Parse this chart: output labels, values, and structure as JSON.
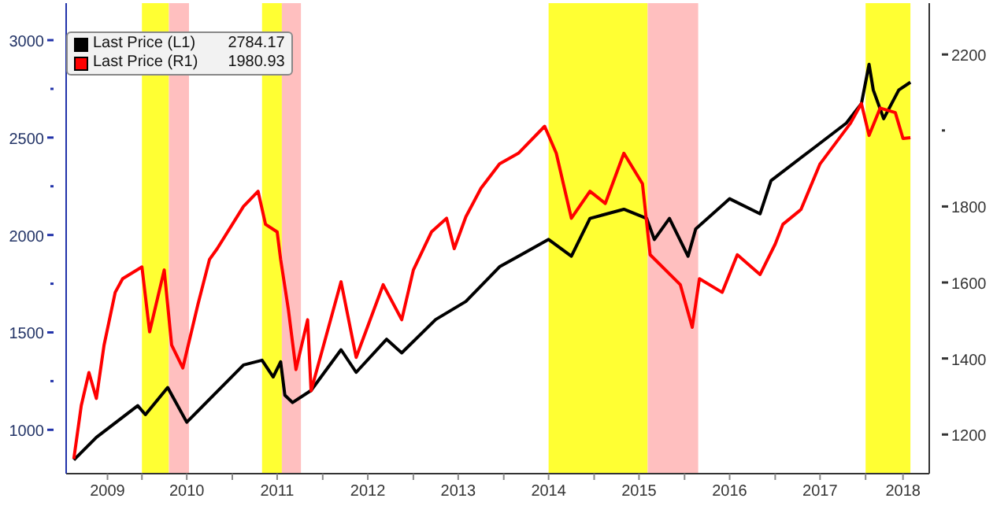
{
  "chart_data": {
    "type": "line",
    "xlim": [
      "2009-03-01",
      "2018-09-15"
    ],
    "xticks": [
      {
        "value": "2010-01-01",
        "label": null
      },
      {
        "value": "2011-01-01",
        "label": null
      },
      {
        "value": "2012-01-01",
        "label": null
      },
      {
        "value": "2013-01-01",
        "label": null
      },
      {
        "value": "2014-01-01",
        "label": null
      },
      {
        "value": "2015-01-01",
        "label": null
      },
      {
        "value": "2016-01-01",
        "label": null
      },
      {
        "value": "2017-01-01",
        "label": null
      },
      {
        "value": "2018-01-01",
        "label": null
      },
      {
        "value": "2009-08-15",
        "label": "2009"
      },
      {
        "value": "2010-07-01",
        "label": "2010"
      },
      {
        "value": "2011-07-01",
        "label": "2011"
      },
      {
        "value": "2012-07-01",
        "label": "2012"
      },
      {
        "value": "2013-07-01",
        "label": "2013"
      },
      {
        "value": "2014-07-01",
        "label": "2014"
      },
      {
        "value": "2015-07-01",
        "label": "2015"
      },
      {
        "value": "2016-07-01",
        "label": "2016"
      },
      {
        "value": "2017-07-01",
        "label": "2017"
      },
      {
        "value": "2018-06-01",
        "label": "2018"
      }
    ],
    "ylim": [
      775,
      3190
    ],
    "yticks": [
      1000,
      {
        "value": 1250,
        "label": null
      },
      1500,
      {
        "value": 1750,
        "label": null
      },
      2000,
      {
        "value": 2250,
        "label": null
      },
      2500,
      {
        "value": 2750,
        "label": null
      },
      3000
    ],
    "y2lim": [
      1097,
      2335
    ],
    "y2ticks": [
      1200,
      1400,
      1600,
      1800,
      {
        "value": 2000,
        "label": null
      },
      2200
    ],
    "legend": "top left",
    "marker": "none",
    "line_style": "solid",
    "annotations": [
      "2784.17",
      "1980.93"
    ],
    "bands": [
      {
        "axis": "x",
        "from": "2010-01-01",
        "to": "2010-04-20",
        "color": "#ffff33"
      },
      {
        "axis": "x",
        "from": "2010-04-20",
        "to": "2010-07-10",
        "color": "#ffbfbf"
      },
      {
        "axis": "x",
        "from": "2011-05-01",
        "to": "2011-07-20",
        "color": "#ffff33"
      },
      {
        "axis": "x",
        "from": "2011-07-20",
        "to": "2011-10-05",
        "color": "#ffbfbf"
      },
      {
        "axis": "x",
        "from": "2014-07-01",
        "to": "2015-08-05",
        "color": "#ffff33"
      },
      {
        "axis": "x",
        "from": "2015-08-05",
        "to": "2016-02-25",
        "color": "#ffbfbf"
      },
      {
        "axis": "x",
        "from": "2018-01-01",
        "to": "2018-07-01",
        "color": "#ffff33"
      }
    ],
    "series": [
      {
        "name": "Last Price (L1)",
        "color": "#000000",
        "x": [
          "2009-04-01",
          "2009-07-01",
          "2009-12-15",
          "2010-01-15",
          "2010-04-15",
          "2010-07-01",
          "2011-02-15",
          "2011-05-01",
          "2011-06-15",
          "2011-07-15",
          "2011-08-01",
          "2011-09-01",
          "2011-11-15",
          "2012-03-15",
          "2012-05-15",
          "2012-09-15",
          "2012-11-15",
          "2013-04-01",
          "2013-08-01",
          "2013-12-15",
          "2014-03-01",
          "2014-07-01",
          "2014-10-01",
          "2014-12-15",
          "2015-05-01",
          "2015-08-01",
          "2015-09-01",
          "2015-11-01",
          "2016-01-15",
          "2016-02-15",
          "2016-07-01",
          "2016-11-01",
          "2016-12-15",
          "2017-06-01",
          "2017-10-15",
          "2017-12-15",
          "2018-01-15",
          "2018-02-01",
          "2018-03-15",
          "2018-05-15",
          "2018-07-01"
        ],
        "values": [
          845,
          961,
          1124,
          1078,
          1217,
          1039,
          1333,
          1357,
          1271,
          1349,
          1178,
          1140,
          1202,
          1411,
          1295,
          1465,
          1395,
          1566,
          1659,
          1837,
          1891,
          1977,
          1891,
          2085,
          2132,
          2085,
          1977,
          2085,
          1891,
          2031,
          2186,
          2109,
          2279,
          2442,
          2574,
          2674,
          2876,
          2744,
          2597,
          2744,
          2784
        ]
      },
      {
        "name": "Last Price (R1)",
        "color": "#ff0000",
        "axis": "y2",
        "x": [
          "2009-04-01",
          "2009-05-01",
          "2009-06-01",
          "2009-07-01",
          "2009-08-01",
          "2009-09-15",
          "2009-10-15",
          "2010-01-01",
          "2010-02-01",
          "2010-04-01",
          "2010-05-01",
          "2010-06-15",
          "2010-08-15",
          "2010-10-01",
          "2010-11-01",
          "2011-02-15",
          "2011-04-15",
          "2011-05-15",
          "2011-07-01",
          "2011-07-15",
          "2011-08-15",
          "2011-09-15",
          "2011-11-01",
          "2011-11-15",
          "2012-03-15",
          "2012-05-15",
          "2012-09-01",
          "2012-11-15",
          "2013-01-01",
          "2013-03-15",
          "2013-05-15",
          "2013-06-15",
          "2013-08-01",
          "2013-10-01",
          "2013-12-15",
          "2014-03-01",
          "2014-06-15",
          "2014-08-01",
          "2014-10-01",
          "2014-12-15",
          "2015-02-15",
          "2015-05-01",
          "2015-07-15",
          "2015-08-15",
          "2015-12-15",
          "2016-02-01",
          "2016-03-01",
          "2016-06-01",
          "2016-08-01",
          "2016-11-01",
          "2017-01-01",
          "2017-02-01",
          "2017-04-15",
          "2017-07-01",
          "2017-11-01",
          "2017-12-15",
          "2018-01-15",
          "2018-03-01",
          "2018-05-01",
          "2018-06-01",
          "2018-07-01"
        ],
        "values": [
          1136,
          1276,
          1363,
          1295,
          1435,
          1574,
          1610,
          1641,
          1470,
          1633,
          1435,
          1375,
          1542,
          1661,
          1689,
          1800,
          1840,
          1753,
          1733,
          1661,
          1530,
          1371,
          1502,
          1315,
          1602,
          1403,
          1594,
          1502,
          1633,
          1733,
          1769,
          1689,
          1773,
          1848,
          1912,
          1940,
          2011,
          1940,
          1769,
          1840,
          1808,
          1940,
          1860,
          1673,
          1594,
          1482,
          1610,
          1574,
          1673,
          1621,
          1701,
          1753,
          1792,
          1912,
          2019,
          2071,
          1987,
          2059,
          2047,
          1979,
          1981
        ]
      }
    ]
  }
}
